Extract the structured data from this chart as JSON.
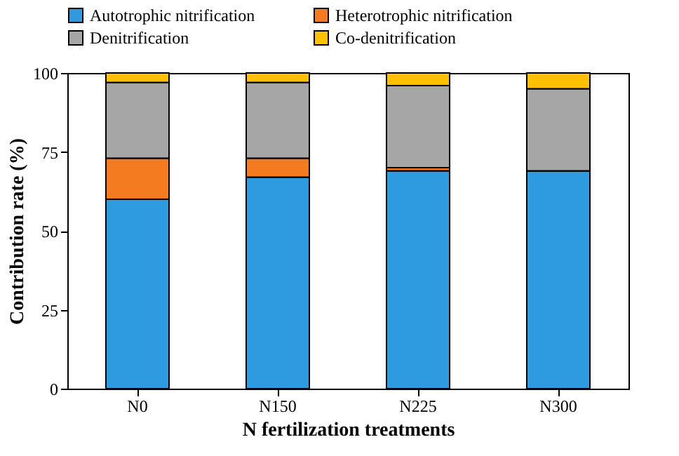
{
  "chart_data": {
    "type": "bar",
    "stacked": true,
    "xlabel": "N fertilization treatments",
    "ylabel": "Contribution rate (%)",
    "categories": [
      "N0",
      "N150",
      "N225",
      "N300"
    ],
    "series": [
      {
        "name": "Autotrophic nitrification",
        "color": "#2e9be0",
        "values": [
          60,
          67,
          69,
          69
        ]
      },
      {
        "name": "Heterotrophic nitrification",
        "color": "#f47b20",
        "values": [
          13,
          6,
          1,
          0
        ]
      },
      {
        "name": "Denitrification",
        "color": "#a6a6a6",
        "values": [
          24,
          24,
          26,
          26
        ]
      },
      {
        "name": "Co-denitrification",
        "color": "#ffc000",
        "values": [
          3,
          3,
          4,
          5
        ]
      }
    ],
    "ylim": [
      0,
      100
    ],
    "yticks": [
      0,
      25,
      50,
      75,
      100
    ],
    "grid": false,
    "legend": "top"
  }
}
